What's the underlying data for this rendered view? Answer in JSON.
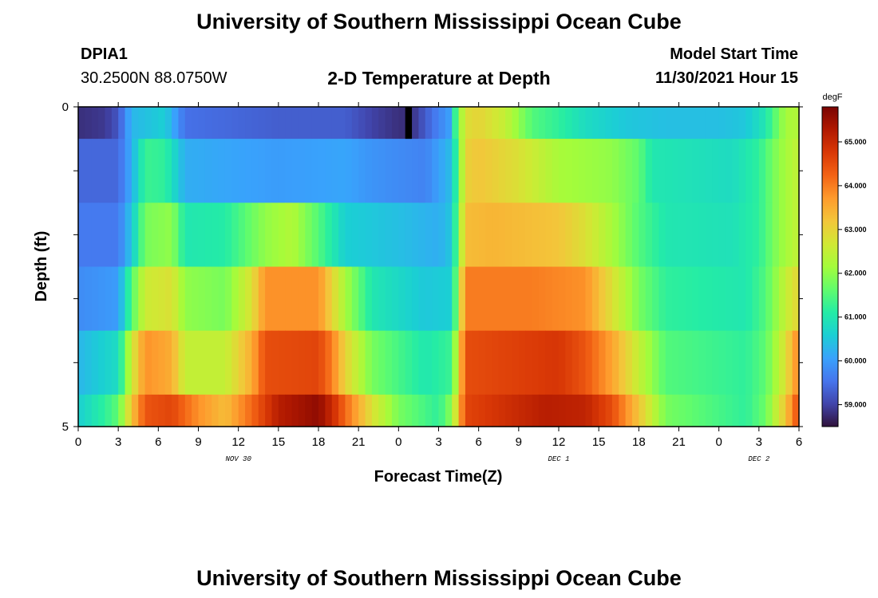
{
  "header": {
    "title": "University of Southern Mississippi Ocean Cube",
    "station_id": "DPIA1",
    "location": "30.2500N  88.0750W",
    "subtitle": "2-D Temperature at Depth",
    "model_start_label": "Model Start Time",
    "model_start_value": "11/30/2021 Hour 15"
  },
  "footer": {
    "title": "University of Southern Mississippi Ocean Cube"
  },
  "chart_data": {
    "type": "heatmap",
    "title": "2-D Temperature at Depth",
    "xlabel": "Forecast Time(Z)",
    "ylabel": "Depth (ft)",
    "x_range_hours": [
      0,
      54
    ],
    "y_range": [
      0,
      5
    ],
    "x_tick_labels": [
      "0",
      "3",
      "6",
      "9",
      "12",
      "15",
      "18",
      "21",
      "0",
      "3",
      "6",
      "9",
      "12",
      "15",
      "18",
      "21",
      "0",
      "3",
      "6"
    ],
    "y_tick_labels": [
      "0",
      "5"
    ],
    "date_labels": [
      {
        "text": "NOV 30",
        "at_hour": 12
      },
      {
        "text": "DEC 1",
        "at_hour": 36
      },
      {
        "text": "DEC 2",
        "at_hour": 51
      }
    ],
    "colorbar": {
      "unit": "degF",
      "min": 58.5,
      "max": 65.8,
      "ticks": [
        "59.000",
        "60.000",
        "61.000",
        "62.000",
        "63.000",
        "64.000",
        "65.000"
      ],
      "colors": [
        "#30123b",
        "#4145ab",
        "#4675ed",
        "#39a2fc",
        "#1bcfd4",
        "#24eca6",
        "#61fc6c",
        "#a4fc3b",
        "#d1e834",
        "#f3c63a",
        "#fe9b2d",
        "#f36315",
        "#d93806",
        "#b11901",
        "#7a0402"
      ]
    },
    "depth_rows": [
      {
        "depth_from": 0,
        "depth_to": 0.5,
        "keyframes": [
          [
            0,
            58.8
          ],
          [
            2,
            58.9
          ],
          [
            3,
            59.2
          ],
          [
            4,
            60.3
          ],
          [
            6.5,
            60.6
          ],
          [
            8,
            59.5
          ],
          [
            15,
            59.3
          ],
          [
            20,
            59.3
          ],
          [
            22,
            59.0
          ],
          [
            24,
            58.8
          ],
          [
            25,
            58.8
          ],
          [
            26.5,
            59.5
          ],
          [
            28,
            60.1
          ],
          [
            28.3,
            61.5
          ],
          [
            29,
            62.8
          ],
          [
            30,
            63.0
          ],
          [
            32,
            62.5
          ],
          [
            34,
            61.5
          ],
          [
            36,
            61.2
          ],
          [
            38,
            60.8
          ],
          [
            41,
            60.5
          ],
          [
            44,
            60.4
          ],
          [
            48,
            60.4
          ],
          [
            50,
            60.5
          ],
          [
            51.5,
            61.0
          ],
          [
            52.5,
            61.8
          ],
          [
            53,
            62.2
          ],
          [
            54,
            62.3
          ]
        ]
      },
      {
        "depth_from": 0.5,
        "depth_to": 1.5,
        "keyframes": [
          [
            0,
            59.4
          ],
          [
            3,
            59.4
          ],
          [
            4,
            60.2
          ],
          [
            5,
            61.3
          ],
          [
            6.5,
            61.2
          ],
          [
            8,
            60.2
          ],
          [
            15,
            60.0
          ],
          [
            20,
            60.1
          ],
          [
            22,
            59.9
          ],
          [
            26,
            59.7
          ],
          [
            28,
            60.4
          ],
          [
            29,
            63.0
          ],
          [
            30,
            63.2
          ],
          [
            33,
            62.8
          ],
          [
            36,
            62.2
          ],
          [
            40,
            62.0
          ],
          [
            42,
            61.6
          ],
          [
            43,
            61.0
          ],
          [
            49,
            60.8
          ],
          [
            51,
            61.2
          ],
          [
            52.5,
            62.0
          ],
          [
            54,
            62.5
          ]
        ]
      },
      {
        "depth_from": 1.5,
        "depth_to": 2.5,
        "keyframes": [
          [
            0,
            59.6
          ],
          [
            3,
            59.6
          ],
          [
            4,
            60.5
          ],
          [
            5,
            61.8
          ],
          [
            7,
            62.0
          ],
          [
            8,
            61.0
          ],
          [
            11,
            61.1
          ],
          [
            14,
            62.0
          ],
          [
            16,
            62.3
          ],
          [
            18,
            61.5
          ],
          [
            20,
            60.6
          ],
          [
            24,
            60.4
          ],
          [
            27,
            60.2
          ],
          [
            28,
            60.5
          ],
          [
            29,
            63.3
          ],
          [
            31,
            63.4
          ],
          [
            36,
            63.2
          ],
          [
            38,
            62.8
          ],
          [
            40,
            62.2
          ],
          [
            42,
            61.5
          ],
          [
            44,
            61.0
          ],
          [
            49,
            60.9
          ],
          [
            51,
            61.2
          ],
          [
            52.5,
            62.0
          ],
          [
            54,
            62.5
          ]
        ]
      },
      {
        "depth_from": 2.5,
        "depth_to": 3.5,
        "keyframes": [
          [
            0,
            59.8
          ],
          [
            3,
            60.0
          ],
          [
            4,
            61.5
          ],
          [
            5,
            62.6
          ],
          [
            7,
            62.8
          ],
          [
            8,
            62.0
          ],
          [
            11,
            61.8
          ],
          [
            13,
            62.8
          ],
          [
            14,
            63.8
          ],
          [
            18,
            63.8
          ],
          [
            19,
            63.0
          ],
          [
            20,
            62.2
          ],
          [
            22,
            61.0
          ],
          [
            26,
            60.5
          ],
          [
            28,
            60.6
          ],
          [
            29,
            64.0
          ],
          [
            34,
            64.0
          ],
          [
            38,
            63.8
          ],
          [
            40,
            62.8
          ],
          [
            42,
            61.8
          ],
          [
            44,
            61.2
          ],
          [
            50,
            61.0
          ],
          [
            51.5,
            61.5
          ],
          [
            53,
            62.5
          ],
          [
            54,
            63.0
          ]
        ]
      },
      {
        "depth_from": 3.5,
        "depth_to": 4.5,
        "keyframes": [
          [
            0,
            60.3
          ],
          [
            3,
            60.8
          ],
          [
            4,
            62.6
          ],
          [
            5,
            63.8
          ],
          [
            7,
            63.5
          ],
          [
            8,
            62.5
          ],
          [
            11,
            62.5
          ],
          [
            13,
            63.5
          ],
          [
            14,
            64.5
          ],
          [
            18,
            64.6
          ],
          [
            19,
            64.0
          ],
          [
            20,
            63.0
          ],
          [
            22,
            61.8
          ],
          [
            26,
            61.0
          ],
          [
            28,
            61.3
          ],
          [
            29,
            64.5
          ],
          [
            36,
            64.8
          ],
          [
            38,
            64.4
          ],
          [
            40,
            63.6
          ],
          [
            42,
            62.5
          ],
          [
            44,
            61.5
          ],
          [
            50,
            61.2
          ],
          [
            51.5,
            61.6
          ],
          [
            53,
            62.8
          ],
          [
            54,
            64.0
          ]
        ]
      },
      {
        "depth_from": 4.5,
        "depth_to": 5.0,
        "keyframes": [
          [
            0,
            60.6
          ],
          [
            2,
            61.2
          ],
          [
            3,
            61.6
          ],
          [
            4,
            63.2
          ],
          [
            5,
            64.4
          ],
          [
            7,
            64.6
          ],
          [
            9,
            63.8
          ],
          [
            11,
            63.3
          ],
          [
            13,
            64.2
          ],
          [
            15,
            65.2
          ],
          [
            18,
            65.6
          ],
          [
            19,
            65.0
          ],
          [
            20,
            64.2
          ],
          [
            22,
            62.8
          ],
          [
            24,
            61.8
          ],
          [
            27,
            61.2
          ],
          [
            28,
            62.0
          ],
          [
            29,
            64.6
          ],
          [
            32,
            64.9
          ],
          [
            35,
            65.2
          ],
          [
            38,
            65.1
          ],
          [
            40,
            64.5
          ],
          [
            42,
            63.2
          ],
          [
            44,
            61.8
          ],
          [
            50,
            61.2
          ],
          [
            51.5,
            61.7
          ],
          [
            53,
            63.2
          ],
          [
            54,
            64.6
          ]
        ]
      }
    ],
    "missing_cells": [
      {
        "hour": 24.5,
        "depth_from": 0,
        "depth_to": 0.5
      }
    ]
  }
}
